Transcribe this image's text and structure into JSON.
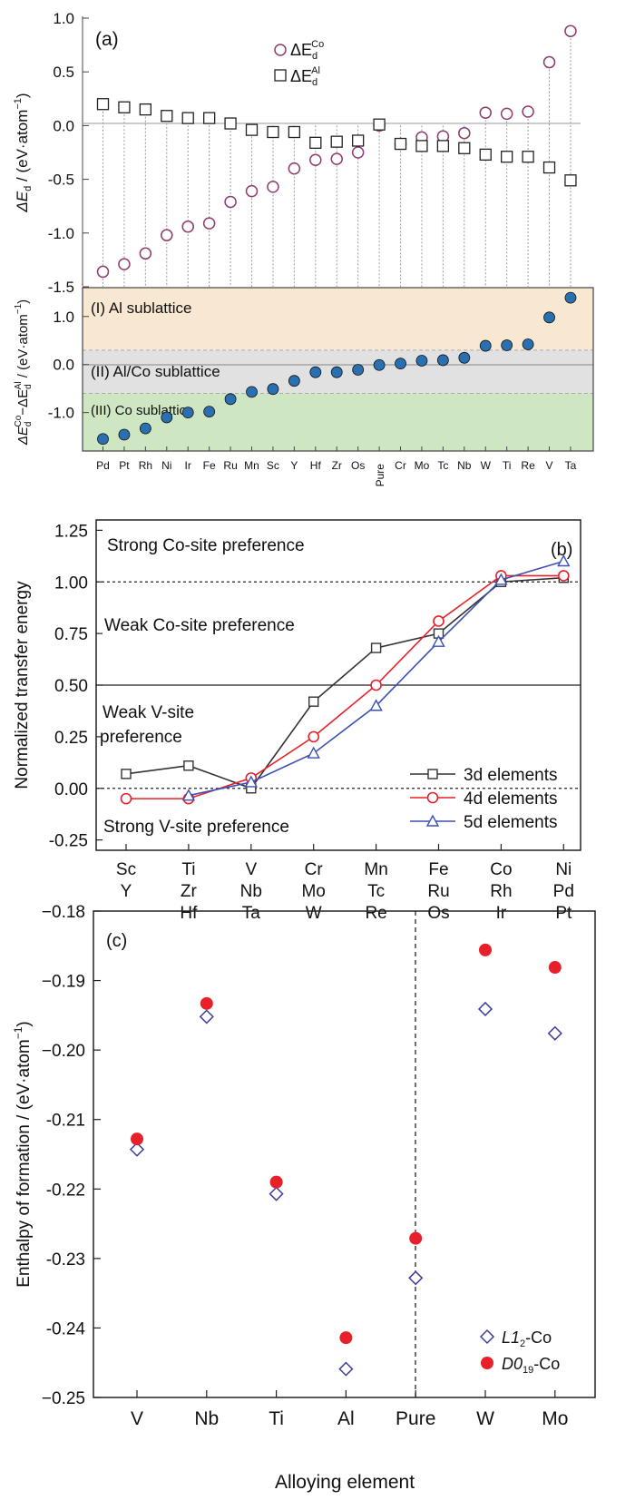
{
  "colors": {
    "co_marker": "#8e3c6e",
    "al_marker": "#222222",
    "diff_marker": "#2a6fb0",
    "region_al": "#f8e8d2",
    "region_alco": "#e1e1e1",
    "region_co": "#cfe6c3",
    "line_3d": "#333333",
    "line_4d": "#e8202a",
    "line_5d": "#3c4fb5",
    "c_l12": "#3c3c9c",
    "c_d019": "#e8202a"
  },
  "chart_data": [
    {
      "type": "scatter",
      "panel": "(a)",
      "sub": "top",
      "categories": [
        "Pd",
        "Pt",
        "Rh",
        "Ni",
        "Ir",
        "Fe",
        "Ru",
        "Mn",
        "Sc",
        "Y",
        "Hf",
        "Zr",
        "Os",
        "Pure",
        "Cr",
        "Mo",
        "Tc",
        "Nb",
        "W",
        "Ti",
        "Re",
        "V",
        "Ta"
      ],
      "series": [
        {
          "name": "ΔE_d^Co",
          "legend_main": "ΔE",
          "legend_sub": "d",
          "legend_sup": "Co",
          "values": [
            -1.36,
            -1.29,
            -1.19,
            -1.02,
            -0.94,
            -0.91,
            -0.71,
            -0.61,
            -0.57,
            -0.4,
            -0.32,
            -0.31,
            -0.25,
            0.0,
            -0.17,
            -0.11,
            -0.1,
            -0.07,
            0.12,
            0.11,
            0.13,
            0.59,
            0.88
          ]
        },
        {
          "name": "ΔE_d^Al",
          "legend_main": "ΔE",
          "legend_sub": "d",
          "legend_sup": "Al",
          "values": [
            0.2,
            0.17,
            0.15,
            0.09,
            0.07,
            0.07,
            0.02,
            -0.04,
            -0.06,
            -0.06,
            -0.16,
            -0.15,
            -0.14,
            0.01,
            -0.17,
            -0.19,
            -0.19,
            -0.21,
            -0.27,
            -0.29,
            -0.29,
            -0.39,
            -0.51
          ]
        }
      ],
      "ylabel_main": "ΔE",
      "ylabel_sub": "d",
      "ylabel_rest": " / (eV·atom",
      "ylabel_sup": "−1",
      "ylabel_close": ")",
      "ylim": [
        -1.5,
        1.0
      ],
      "yticks": [
        1.0,
        0.5,
        0.0,
        -0.5,
        -1.0,
        -1.5
      ],
      "ytick_labels": [
        "1.0",
        "0.5",
        "0.0",
        "-0.5",
        "-1.0",
        "-1.5"
      ]
    },
    {
      "type": "scatter",
      "panel": "(a)",
      "sub": "bottom",
      "categories": [
        "Pd",
        "Pt",
        "Rh",
        "Ni",
        "Ir",
        "Fe",
        "Ru",
        "Mn",
        "Sc",
        "Y",
        "Hf",
        "Zr",
        "Os",
        "Pure",
        "Cr",
        "Mo",
        "Tc",
        "Nb",
        "W",
        "Ti",
        "Re",
        "V",
        "Ta"
      ],
      "values": [
        -1.55,
        -1.46,
        -1.33,
        -1.1,
        -1.0,
        -0.98,
        -0.72,
        -0.57,
        -0.51,
        -0.34,
        -0.16,
        -0.16,
        -0.11,
        -0.01,
        0.02,
        0.08,
        0.09,
        0.14,
        0.39,
        0.4,
        0.42,
        0.98,
        1.39
      ],
      "regions": [
        {
          "label": "(I) Al sublattice",
          "from": 0.3,
          "to": 1.6
        },
        {
          "label": "(II) Al/Co sublattice",
          "from": -0.6,
          "to": 0.3
        },
        {
          "label": "(III) Co sublattice",
          "from": -1.8,
          "to": -0.6
        }
      ],
      "ylabel_a": "ΔE",
      "ylabel_b": "d",
      "ylabel_c": "Co",
      "ylabel_d": "−ΔE",
      "ylabel_e": "d",
      "ylabel_f": "Al",
      "ylabel_g": " / (eV·atom",
      "ylabel_h": "−1",
      "ylabel_i": ")",
      "ylim": [
        -1.8,
        1.6
      ],
      "yticks": [
        1.0,
        0.0,
        -1.0
      ],
      "ytick_labels": [
        "1.0",
        "0.0",
        "-1.0"
      ]
    },
    {
      "type": "line",
      "panel": "(b)",
      "x_groups": [
        [
          "Sc",
          "Y"
        ],
        [
          "Ti",
          "Zr",
          "Hf"
        ],
        [
          "V",
          "Nb",
          "Ta"
        ],
        [
          "Cr",
          "Mo",
          "W"
        ],
        [
          "Mn",
          "Tc",
          "Re"
        ],
        [
          "Fe",
          "Ru",
          "Os"
        ],
        [
          "Co",
          "Rh",
          "Ir"
        ],
        [
          "Ni",
          "Pd",
          "Pt"
        ]
      ],
      "series": [
        {
          "name": "3d elements",
          "values": [
            0.07,
            0.11,
            0.0,
            0.42,
            0.68,
            0.75,
            1.0,
            1.02
          ]
        },
        {
          "name": "4d elements",
          "values": [
            -0.05,
            -0.05,
            0.05,
            0.25,
            0.5,
            0.81,
            1.03,
            1.03
          ]
        },
        {
          "name": "5d elements",
          "values": [
            null,
            -0.035,
            0.03,
            0.17,
            0.4,
            0.71,
            1.01,
            1.1
          ]
        }
      ],
      "ylabel": "Normalized transfer energy",
      "ylim": [
        -0.3,
        1.3
      ],
      "yticks": [
        1.25,
        1.0,
        0.75,
        0.5,
        0.25,
        0.0,
        -0.25
      ],
      "ytick_labels": [
        "1.25",
        "1.00",
        "0.75",
        "0.50",
        "0.25",
        "0.00",
        "-0.25"
      ],
      "annotations": [
        "Strong Co-site preference",
        "Weak Co-site preference",
        "Weak V-site",
        "preference",
        "Strong V-site preference"
      ]
    },
    {
      "type": "scatter",
      "panel": "(c)",
      "categories": [
        "V",
        "Nb",
        "Ti",
        "Al",
        "Pure",
        "W",
        "Mo"
      ],
      "series": [
        {
          "name": "L1₂-Co",
          "legend_a": "L1",
          "legend_b": "2",
          "legend_c": "-Co",
          "values": [
            -0.2143,
            -0.1952,
            -0.2207,
            -0.2459,
            -0.2328,
            -0.1941,
            -0.1976
          ]
        },
        {
          "name": "D0₁₉-Co",
          "legend_a": "D0",
          "legend_b": "19",
          "legend_c": "-Co",
          "values": [
            -0.2128,
            -0.1933,
            -0.219,
            -0.2414,
            -0.2271,
            -0.1856,
            -0.1881
          ]
        }
      ],
      "xlabel": "Alloying element",
      "ylabel_main": "Enthalpy of formation / (eV·atom",
      "ylabel_sup": "−1",
      "ylabel_close": ")",
      "ylim": [
        -0.25,
        -0.18
      ],
      "yticks": [
        -0.18,
        -0.19,
        -0.2,
        -0.21,
        -0.22,
        -0.23,
        -0.24,
        -0.25
      ],
      "ytick_labels": [
        "−0.18",
        "−0.19",
        "−0.20",
        "-0.21",
        "-0.22",
        "-0.23",
        "-0.24",
        "−0.25"
      ]
    }
  ]
}
